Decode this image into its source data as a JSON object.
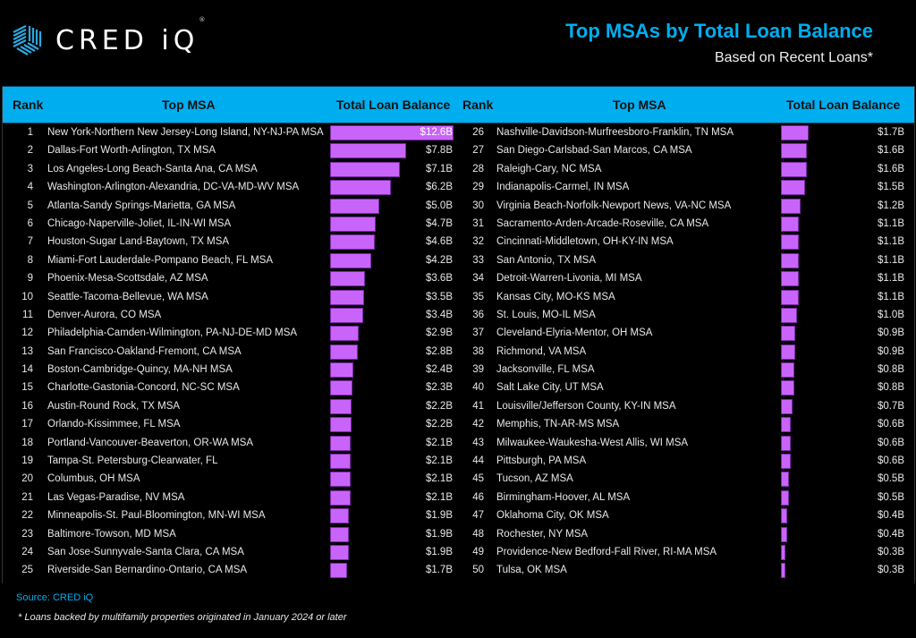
{
  "brand": {
    "name": "CRED iQ",
    "logo_text": "CRED iQ",
    "registered_mark": "®",
    "icon": "cube-stripes-icon",
    "accent_color": "#00aeef"
  },
  "header": {
    "title": "Top MSAs by Total Loan Balance",
    "subtitle": "Based on Recent Loans*"
  },
  "table": {
    "columns": [
      "Rank",
      "Top MSA",
      "Total Loan Balance"
    ],
    "header_color": "#00aeef",
    "bar_color": "#c964fa",
    "max_value_billions": 12.6,
    "left": [
      {
        "rank": "1",
        "msa": "New York-Northern New Jersey-Long Island, NY-NJ-PA MSA",
        "value": 12.6,
        "label": "$12.6B"
      },
      {
        "rank": "2",
        "msa": "Dallas-Fort Worth-Arlington, TX MSA",
        "value": 7.8,
        "label": "$7.8B"
      },
      {
        "rank": "3",
        "msa": "Los Angeles-Long Beach-Santa Ana, CA MSA",
        "value": 7.1,
        "label": "$7.1B"
      },
      {
        "rank": "4",
        "msa": "Washington-Arlington-Alexandria, DC-VA-MD-WV MSA",
        "value": 6.2,
        "label": "$6.2B"
      },
      {
        "rank": "5",
        "msa": "Atlanta-Sandy Springs-Marietta, GA MSA",
        "value": 5.0,
        "label": "$5.0B"
      },
      {
        "rank": "6",
        "msa": "Chicago-Naperville-Joliet, IL-IN-WI MSA",
        "value": 4.7,
        "label": "$4.7B"
      },
      {
        "rank": "7",
        "msa": "Houston-Sugar Land-Baytown, TX MSA",
        "value": 4.6,
        "label": "$4.6B"
      },
      {
        "rank": "8",
        "msa": "Miami-Fort Lauderdale-Pompano Beach, FL MSA",
        "value": 4.2,
        "label": "$4.2B"
      },
      {
        "rank": "9",
        "msa": "Phoenix-Mesa-Scottsdale, AZ MSA",
        "value": 3.6,
        "label": "$3.6B"
      },
      {
        "rank": "10",
        "msa": "Seattle-Tacoma-Bellevue, WA MSA",
        "value": 3.5,
        "label": "$3.5B"
      },
      {
        "rank": "11",
        "msa": "Denver-Aurora, CO MSA",
        "value": 3.4,
        "label": "$3.4B"
      },
      {
        "rank": "12",
        "msa": "Philadelphia-Camden-Wilmington, PA-NJ-DE-MD MSA",
        "value": 2.9,
        "label": "$2.9B"
      },
      {
        "rank": "13",
        "msa": "San Francisco-Oakland-Fremont, CA MSA",
        "value": 2.8,
        "label": "$2.8B"
      },
      {
        "rank": "14",
        "msa": "Boston-Cambridge-Quincy, MA-NH MSA",
        "value": 2.4,
        "label": "$2.4B"
      },
      {
        "rank": "15",
        "msa": "Charlotte-Gastonia-Concord, NC-SC MSA",
        "value": 2.3,
        "label": "$2.3B"
      },
      {
        "rank": "16",
        "msa": "Austin-Round Rock, TX MSA",
        "value": 2.2,
        "label": "$2.2B"
      },
      {
        "rank": "17",
        "msa": "Orlando-Kissimmee, FL MSA",
        "value": 2.2,
        "label": "$2.2B"
      },
      {
        "rank": "18",
        "msa": "Portland-Vancouver-Beaverton, OR-WA MSA",
        "value": 2.1,
        "label": "$2.1B"
      },
      {
        "rank": "19",
        "msa": "Tampa-St. Petersburg-Clearwater, FL",
        "value": 2.1,
        "label": "$2.1B"
      },
      {
        "rank": "20",
        "msa": "Columbus, OH MSA",
        "value": 2.1,
        "label": "$2.1B"
      },
      {
        "rank": "21",
        "msa": "Las Vegas-Paradise, NV MSA",
        "value": 2.1,
        "label": "$2.1B"
      },
      {
        "rank": "22",
        "msa": "Minneapolis-St. Paul-Bloomington, MN-WI MSA",
        "value": 1.9,
        "label": "$1.9B"
      },
      {
        "rank": "23",
        "msa": "Baltimore-Towson, MD MSA",
        "value": 1.9,
        "label": "$1.9B"
      },
      {
        "rank": "24",
        "msa": "San Jose-Sunnyvale-Santa Clara, CA MSA",
        "value": 1.9,
        "label": "$1.9B"
      },
      {
        "rank": "25",
        "msa": "Riverside-San Bernardino-Ontario, CA MSA",
        "value": 1.7,
        "label": "$1.7B"
      }
    ],
    "right": [
      {
        "rank": "26",
        "msa": "Nashville-Davidson-Murfreesboro-Franklin, TN MSA",
        "value": 1.7,
        "label": "$1.7B"
      },
      {
        "rank": "27",
        "msa": "San Diego-Carlsbad-San Marcos, CA MSA",
        "value": 1.6,
        "label": "$1.6B"
      },
      {
        "rank": "28",
        "msa": "Raleigh-Cary, NC MSA",
        "value": 1.6,
        "label": "$1.6B"
      },
      {
        "rank": "29",
        "msa": "Indianapolis-Carmel, IN MSA",
        "value": 1.5,
        "label": "$1.5B"
      },
      {
        "rank": "30",
        "msa": "Virginia Beach-Norfolk-Newport News, VA-NC MSA",
        "value": 1.2,
        "label": "$1.2B"
      },
      {
        "rank": "31",
        "msa": "Sacramento-Arden-Arcade-Roseville, CA MSA",
        "value": 1.1,
        "label": "$1.1B"
      },
      {
        "rank": "32",
        "msa": "Cincinnati-Middletown, OH-KY-IN MSA",
        "value": 1.1,
        "label": "$1.1B"
      },
      {
        "rank": "33",
        "msa": "San Antonio, TX MSA",
        "value": 1.1,
        "label": "$1.1B"
      },
      {
        "rank": "34",
        "msa": "Detroit-Warren-Livonia, MI MSA",
        "value": 1.1,
        "label": "$1.1B"
      },
      {
        "rank": "35",
        "msa": "Kansas City, MO-KS MSA",
        "value": 1.1,
        "label": "$1.1B"
      },
      {
        "rank": "36",
        "msa": "St. Louis, MO-IL MSA",
        "value": 1.0,
        "label": "$1.0B"
      },
      {
        "rank": "37",
        "msa": "Cleveland-Elyria-Mentor, OH MSA",
        "value": 0.9,
        "label": "$0.9B"
      },
      {
        "rank": "38",
        "msa": "Richmond, VA MSA",
        "value": 0.9,
        "label": "$0.9B"
      },
      {
        "rank": "39",
        "msa": "Jacksonville, FL MSA",
        "value": 0.8,
        "label": "$0.8B"
      },
      {
        "rank": "40",
        "msa": "Salt Lake City, UT MSA",
        "value": 0.8,
        "label": "$0.8B"
      },
      {
        "rank": "41",
        "msa": "Louisville/Jefferson County, KY-IN MSA",
        "value": 0.7,
        "label": "$0.7B"
      },
      {
        "rank": "42",
        "msa": "Memphis, TN-AR-MS MSA",
        "value": 0.6,
        "label": "$0.6B"
      },
      {
        "rank": "43",
        "msa": "Milwaukee-Waukesha-West Allis, WI MSA",
        "value": 0.6,
        "label": "$0.6B"
      },
      {
        "rank": "44",
        "msa": "Pittsburgh, PA MSA",
        "value": 0.6,
        "label": "$0.6B"
      },
      {
        "rank": "45",
        "msa": "Tucson, AZ MSA",
        "value": 0.5,
        "label": "$0.5B"
      },
      {
        "rank": "46",
        "msa": "Birmingham-Hoover, AL MSA",
        "value": 0.5,
        "label": "$0.5B"
      },
      {
        "rank": "47",
        "msa": "Oklahoma City, OK MSA",
        "value": 0.4,
        "label": "$0.4B"
      },
      {
        "rank": "48",
        "msa": "Rochester, NY MSA",
        "value": 0.4,
        "label": "$0.4B"
      },
      {
        "rank": "49",
        "msa": "Providence-New Bedford-Fall River, RI-MA MSA",
        "value": 0.3,
        "label": "$0.3B"
      },
      {
        "rank": "50",
        "msa": "Tulsa, OK MSA",
        "value": 0.3,
        "label": "$0.3B"
      }
    ]
  },
  "footer": {
    "source": "Source: CRED iQ",
    "footnote": "* Loans backed by multifamily properties originated in January 2024 or later"
  }
}
